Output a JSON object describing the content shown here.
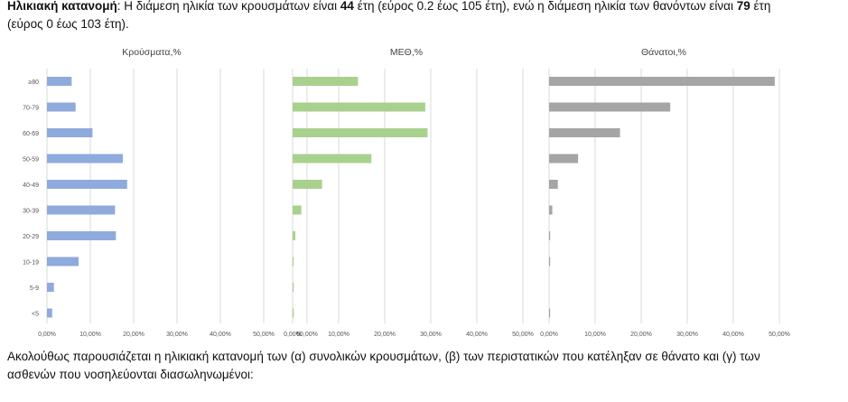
{
  "intro": {
    "bold_label": "Ηλικιακή κατανομή",
    "text_a": ": Η διάμεση ηλικία των κρουσμάτων είναι ",
    "median_cases": "44",
    "text_b": " έτη (εύρος 0.2 έως 105 έτη), ενώ η διάμεση ηλικία των θανόντων είναι ",
    "median_deaths": "79",
    "text_c": " έτη",
    "line2": "(εύρος 0 έως 103 έτη)."
  },
  "outro": {
    "line1": "Ακολούθως παρουσιάζεται η ηλικιακή κατανομή των (α) συνολικών κρουσμάτων, (β) των περιστατικών που κατέληξαν σε θάνατο και (γ) των",
    "line2": "ασθενών που νοσηλεύονται διασωληνωμένοι:"
  },
  "chart_data": [
    {
      "type": "bar",
      "orientation": "horizontal",
      "title": "Κρούσματα,%",
      "color": "#8faadc",
      "categories": [
        "≥80",
        "70-79",
        "60-69",
        "50-59",
        "40-49",
        "30-39",
        "20-29",
        "10-19",
        "5-9",
        "<5"
      ],
      "values": [
        5.7,
        6.6,
        10.5,
        17.5,
        18.5,
        15.7,
        15.9,
        7.3,
        1.6,
        1.2
      ],
      "xlim": [
        0,
        60
      ],
      "xticks": [
        "0,00%",
        "10,00%",
        "20,00%",
        "30,00%",
        "40,00%",
        "50,00%",
        "60,00%"
      ],
      "grid": true
    },
    {
      "type": "bar",
      "orientation": "horizontal",
      "title": "ΜΕΘ,%",
      "color": "#a9d18e",
      "categories": [
        "≥80",
        "70-79",
        "60-69",
        "50-59",
        "40-49",
        "30-39",
        "20-29",
        "10-19",
        "5-9",
        "<5"
      ],
      "values": [
        14.2,
        28.8,
        29.3,
        17.1,
        6.4,
        1.9,
        0.6,
        0.2,
        0.2,
        0.25
      ],
      "xlim": [
        0,
        50
      ],
      "xticks": [
        "0,00%",
        "10,00%",
        "20,00%",
        "30,00%",
        "40,00%",
        "50,00%"
      ],
      "grid": true
    },
    {
      "type": "bar",
      "orientation": "horizontal",
      "title": "Θάνατοι,%",
      "color": "#a5a5a5",
      "categories": [
        "≥80",
        "70-79",
        "60-69",
        "50-59",
        "40-49",
        "30-39",
        "20-29",
        "10-19",
        "5-9",
        "<5"
      ],
      "values": [
        49.0,
        26.3,
        15.4,
        6.3,
        1.9,
        0.7,
        0.2,
        0.2,
        0,
        0.2
      ],
      "xlim": [
        0,
        50
      ],
      "xticks": [
        "0,00%",
        "10,00%",
        "20,00%",
        "30,00%",
        "40,00%",
        "50,00%"
      ],
      "grid": true
    }
  ]
}
